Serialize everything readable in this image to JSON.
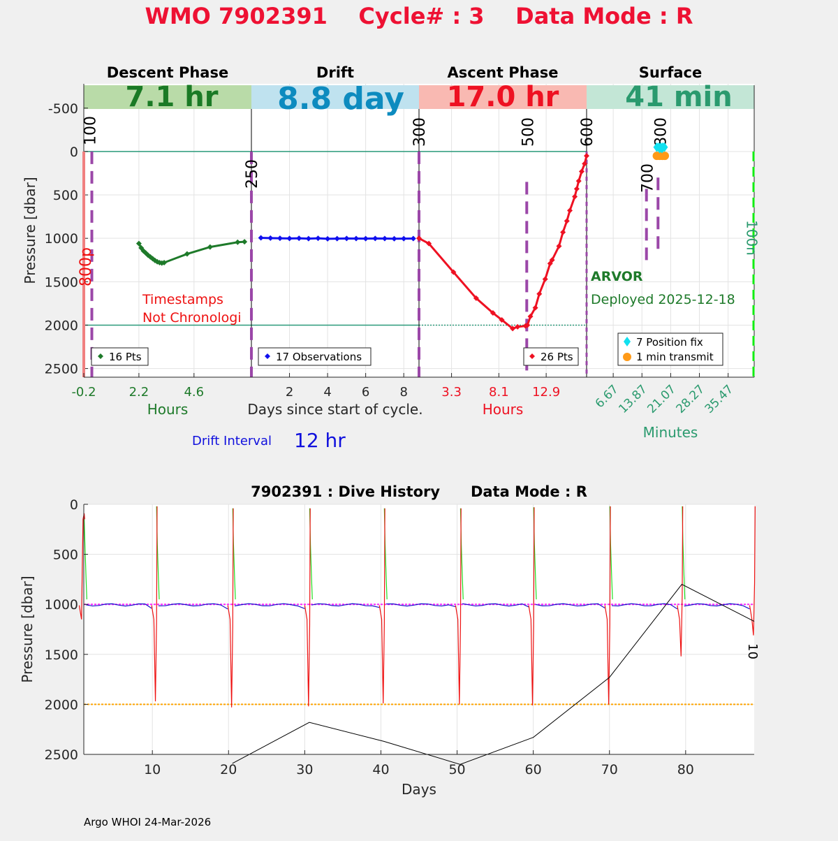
{
  "title": "WMO 7902391    Cycle# : 3    Data Mode : R",
  "top_panel": {
    "y_label": "Pressure [dbar]",
    "y_ticks": [
      -500,
      0,
      500,
      1000,
      1500,
      2000,
      2500
    ],
    "y_range": [
      -780,
      2600
    ],
    "phases": [
      {
        "name": "Descent Phase",
        "banner": "7.1 hr",
        "banner_bg": "#b9dba8",
        "banner_color": "#1a7a25"
      },
      {
        "name": "Drift",
        "banner": "8.8 day",
        "banner_bg": "#bfe2ef",
        "banner_color": "#0d8bbf"
      },
      {
        "name": "Ascent Phase",
        "banner": "17.0 hr",
        "banner_bg": "#f9b9b2",
        "banner_color": "#ee1122"
      },
      {
        "name": "Surface",
        "banner": "41 min",
        "banner_bg": "#c3e6d6",
        "banner_color": "#2a9a6e"
      }
    ],
    "descent": {
      "x_range": [
        -0.2,
        7.1
      ],
      "x_ticks": [
        "-0.2",
        "2.2",
        "4.6"
      ],
      "x_tick_values": [
        -0.2,
        2.2,
        4.6
      ],
      "x_label": "Hours",
      "legend": "16 Pts",
      "color": "#1e7a2a",
      "x": [
        2.2,
        2.3,
        2.4,
        2.5,
        2.6,
        2.7,
        2.8,
        2.9,
        3.0,
        3.1,
        3.2,
        3.3,
        4.3,
        5.3,
        6.5,
        6.8
      ],
      "y": [
        1060,
        1110,
        1145,
        1170,
        1195,
        1215,
        1235,
        1255,
        1270,
        1280,
        1285,
        1280,
        1180,
        1100,
        1045,
        1040
      ],
      "annotation_line1": "Timestamps",
      "annotation_line2": "Not Chronologi"
    },
    "drift": {
      "x_range": [
        0,
        8.8
      ],
      "x_ticks": [
        "2",
        "4",
        "6",
        "8"
      ],
      "x_tick_values": [
        2,
        4,
        6,
        8
      ],
      "x_label": "Days since start of cycle.",
      "legend": "17 Observations",
      "color": "#1010ee",
      "x": [
        0.5,
        1.0,
        1.5,
        2.0,
        2.5,
        3.0,
        3.5,
        4.0,
        4.5,
        5.0,
        5.5,
        6.0,
        6.5,
        7.0,
        7.5,
        8.0,
        8.5
      ],
      "y": [
        995,
        998,
        1000,
        1002,
        1000,
        1004,
        1000,
        1006,
        1004,
        1002,
        1003,
        1004,
        1002,
        1003,
        1005,
        1004,
        1003
      ]
    },
    "ascent": {
      "x_range": [
        0,
        17
      ],
      "x_ticks": [
        "3.3",
        "8.1",
        "12.9"
      ],
      "x_tick_values": [
        3.3,
        8.1,
        12.9
      ],
      "x_label": "Hours",
      "legend": "26 Pts",
      "color": "#ee1122",
      "x": [
        0,
        1.0,
        3.5,
        5.8,
        7.5,
        8.4,
        9.5,
        10.0,
        10.8,
        11.0,
        11.3,
        11.8,
        12.2,
        12.8,
        13.3,
        13.5,
        14.2,
        14.6,
        15.0,
        15.3,
        15.8,
        16.0,
        16.2,
        16.5,
        16.8,
        17.0
      ],
      "y": [
        1000,
        1060,
        1390,
        1690,
        1860,
        1940,
        2040,
        2020,
        2010,
        2000,
        1900,
        1800,
        1640,
        1470,
        1290,
        1250,
        1090,
        930,
        800,
        680,
        520,
        430,
        340,
        230,
        140,
        50
      ],
      "numbers": [
        {
          "label": "300",
          "x": 0
        },
        {
          "label": "500",
          "x": 11.0
        },
        {
          "label": "600",
          "x": 17.0
        }
      ]
    },
    "surface": {
      "x_range": [
        0,
        42
      ],
      "x_ticks": [
        "6.67",
        "13.87",
        "21.07",
        "28.27",
        "35.47"
      ],
      "x_tick_values": [
        6.67,
        13.87,
        21.07,
        28.27,
        35.47
      ],
      "x_label": "Minutes",
      "float_type": "ARVOR",
      "deployed": "Deployed 2025-12-18",
      "legend_fix": "7 Position fix",
      "legend_transmit": "1 min transmit",
      "fix_color": "#11e0ef",
      "transmit_color": "#ff9a18",
      "fix_x": [
        17.6,
        18.1,
        18.6,
        19.1,
        19.5,
        18.3,
        18.9
      ],
      "fix_y": [
        -50,
        -50,
        -50,
        -50,
        -50,
        -35,
        -35
      ],
      "transmit_x": [
        17.6,
        18.3,
        19.0,
        19.6
      ],
      "transmit_y": [
        50,
        50,
        50,
        50
      ],
      "numbers": [
        {
          "label": "700",
          "x": 15.0
        },
        {
          "label": "800",
          "x": 17.9
        },
        {
          "label": "100n",
          "x": 41.2
        }
      ]
    },
    "descent_numbers": [
      {
        "label": "100",
        "x": 0.15
      },
      {
        "label": "250",
        "x": 7.1
      },
      {
        "label": "800p",
        "x": -0.2
      }
    ],
    "drift_interval_label": "Drift Interval",
    "drift_interval_value": "12 hr"
  },
  "bottom_panel": {
    "title": "7902391 : Dive History      Data Mode : R",
    "y_label": "Pressure [dbar]",
    "x_label": "Days",
    "x_range": [
      1,
      89
    ],
    "y_range": [
      0,
      2500
    ],
    "x_ticks": [
      10,
      20,
      30,
      40,
      50,
      60,
      70,
      80
    ],
    "y_ticks": [
      0,
      500,
      1000,
      1500,
      2000,
      2500
    ],
    "drift_line": 1000,
    "drift_line_color": "#ff22ff",
    "profile_line": 2000,
    "profile_line_color": "#ffa500",
    "cycle_days": [
      1.0,
      10.5,
      20.5,
      30.6,
      40.4,
      50.4,
      60.0,
      70.0,
      79.5,
      89.0
    ],
    "cycle_depths": [
      150,
      1970,
      2030,
      2020,
      1990,
      2000,
      2010,
      2000,
      1520,
      1310
    ],
    "ascent_tops": [
      150,
      20,
      40,
      40,
      40,
      40,
      30,
      20,
      20,
      20
    ],
    "track_x": [
      20.5,
      30.6,
      40.4,
      50.4,
      60.0,
      70.0,
      79.5,
      89.0
    ],
    "track_y": [
      2590,
      2180,
      2370,
      2600,
      2330,
      1730,
      800,
      1170
    ],
    "end_label": "10"
  },
  "footer": "Argo WHOI 24-Mar-2026"
}
